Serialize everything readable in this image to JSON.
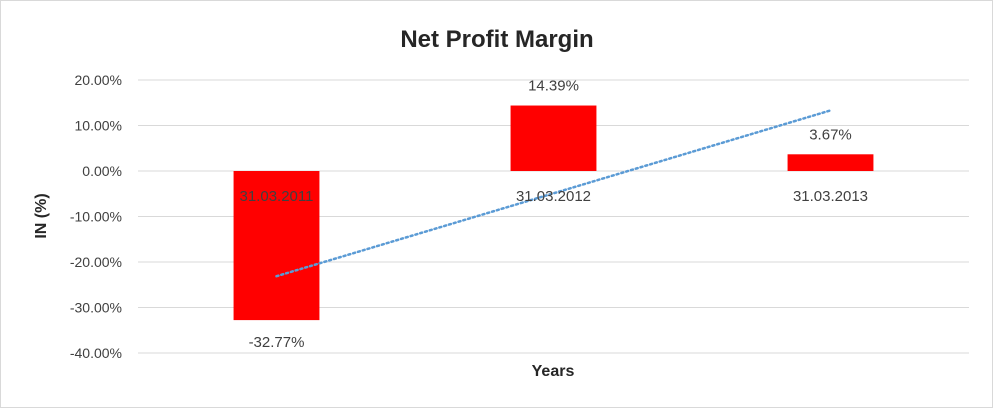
{
  "chart_data": {
    "type": "bar",
    "title": "Net Profit Margin",
    "xlabel": "Years",
    "ylabel": "IN (%)",
    "categories": [
      "31.03.2011",
      "31.03.2012",
      "31.03.2013"
    ],
    "series": [
      {
        "values": [
          -32.77,
          14.39,
          3.67
        ],
        "labels": [
          "-32.77%",
          "14.39%",
          "3.67%"
        ],
        "color": "#ff0000"
      }
    ],
    "ylim": [
      -40,
      20
    ],
    "yticks": [
      20,
      10,
      0,
      -10,
      -20,
      -30,
      -40
    ],
    "ytick_labels": [
      "20.00%",
      "10.00%",
      "0.00%",
      "-10.00%",
      "-20.00%",
      "-30.00%",
      "-40.00%"
    ],
    "grid": true,
    "trendline": {
      "type": "linear",
      "style": "dotted",
      "color": "#5b9bd5"
    },
    "gridline_color": "#d9d9d9"
  }
}
